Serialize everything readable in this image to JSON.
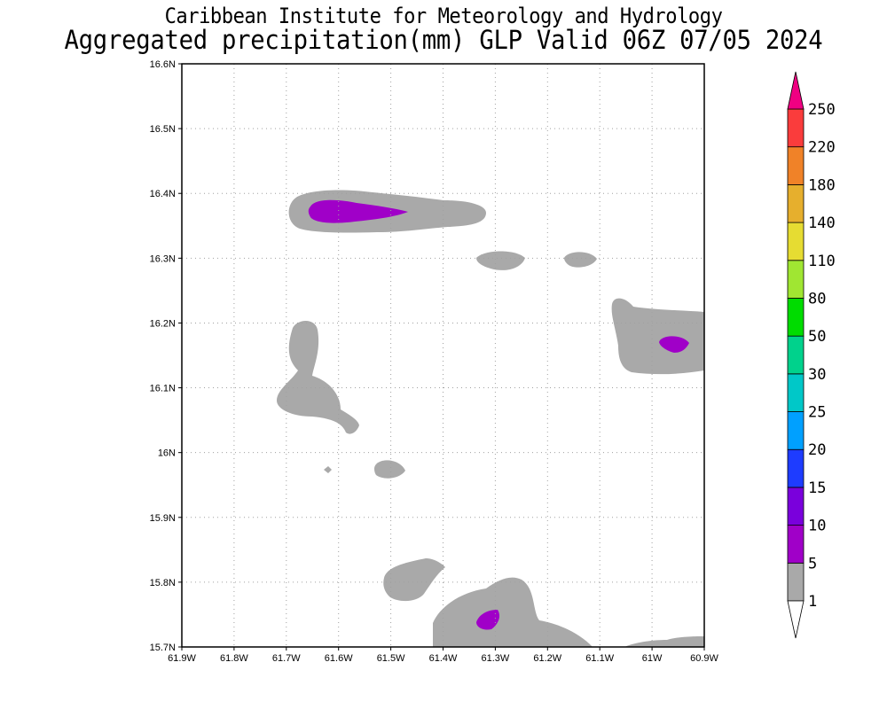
{
  "header": {
    "institute": "Caribbean Institute for Meteorology and Hydrology",
    "product": "Aggregated precipitation(mm) GLP Valid 06Z 07/05 2024"
  },
  "map": {
    "lat_range": [
      15.7,
      16.6
    ],
    "lon_range": [
      -61.9,
      -60.9
    ],
    "grid": "dotted",
    "lat_labels": [
      "16.6N",
      "16.5N",
      "16.4N",
      "16.3N",
      "16.2N",
      "16.1N",
      "16N",
      "15.9N",
      "15.8N",
      "15.7N"
    ],
    "lon_labels": [
      "61.9W",
      "61.8W",
      "61.7W",
      "61.6W",
      "61.5W",
      "61.4W",
      "61.3W",
      "61.2W",
      "61.1W",
      "61W",
      "60.9W"
    ]
  },
  "colorbar": {
    "levels": [
      "1",
      "5",
      "10",
      "15",
      "20",
      "25",
      "30",
      "50",
      "80",
      "110",
      "140",
      "180",
      "220",
      "250"
    ],
    "colors": [
      "#a9a9a9",
      "#a000c8",
      "#7a00dc",
      "#1e3cff",
      "#00a0ff",
      "#00c8c8",
      "#00d28c",
      "#00dc00",
      "#a0e632",
      "#e6dc32",
      "#e6af2d",
      "#f08228",
      "#fa3c3c",
      "#f00082"
    ],
    "extend": "both"
  },
  "colors": {
    "rain_1_5": "#a9a9a9",
    "rain_5_10": "#a000c8"
  }
}
